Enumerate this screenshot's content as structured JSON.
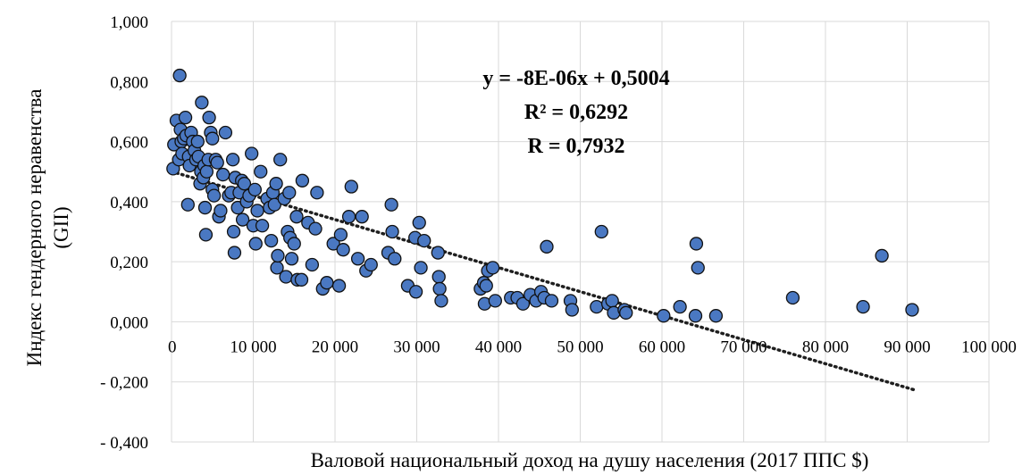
{
  "chart_data": {
    "type": "scatter",
    "title": "",
    "xlabel": "Валовой национальный доход  на душу населения (2017 ППС $)",
    "ylabel_line1": "Индекс гендерного неравенства",
    "ylabel_line2": "(GII)",
    "xlim": [
      0,
      100000
    ],
    "ylim": [
      -0.4,
      1.0
    ],
    "x_ticks": [
      {
        "value": 0,
        "label": "0"
      },
      {
        "value": 10000,
        "label": "10 000"
      },
      {
        "value": 20000,
        "label": "20 000"
      },
      {
        "value": 30000,
        "label": "30 000"
      },
      {
        "value": 40000,
        "label": "40 000"
      },
      {
        "value": 50000,
        "label": "50 000"
      },
      {
        "value": 60000,
        "label": "60 000"
      },
      {
        "value": 70000,
        "label": "70 000"
      },
      {
        "value": 80000,
        "label": "80 000"
      },
      {
        "value": 90000,
        "label": "90 000"
      },
      {
        "value": 100000,
        "label": "100 000"
      }
    ],
    "y_ticks": [
      {
        "value": 1.0,
        "label": "1,000"
      },
      {
        "value": 0.8,
        "label": "0,800"
      },
      {
        "value": 0.6,
        "label": "0,600"
      },
      {
        "value": 0.4,
        "label": "0,400"
      },
      {
        "value": 0.2,
        "label": "0,200"
      },
      {
        "value": 0.0,
        "label": "0,000"
      },
      {
        "value": -0.2,
        "label": "- 0,200"
      },
      {
        "value": -0.4,
        "label": "- 0,400"
      }
    ],
    "grid": {
      "horizontal": true,
      "vertical": true
    },
    "colors": {
      "marker_fill": "#4a78c2",
      "marker_stroke": "#111111",
      "trendline": "#1f1f1f",
      "grid": "#d9d9d9"
    },
    "trendline": {
      "type": "linear",
      "slope": -8e-06,
      "intercept": 0.5004,
      "x_range": [
        0,
        91000
      ]
    },
    "annotations": [
      "y = -8E-06x + 0,5004",
      "R² = 0,6292",
      "R = 0,7932"
    ],
    "points": [
      [
        200,
        0.51
      ],
      [
        300,
        0.59
      ],
      [
        600,
        0.67
      ],
      [
        900,
        0.54
      ],
      [
        1000,
        0.82
      ],
      [
        1100,
        0.64
      ],
      [
        1200,
        0.6
      ],
      [
        1300,
        0.56
      ],
      [
        1500,
        0.61
      ],
      [
        1700,
        0.68
      ],
      [
        1800,
        0.62
      ],
      [
        2000,
        0.39
      ],
      [
        2100,
        0.55
      ],
      [
        2200,
        0.52
      ],
      [
        2400,
        0.63
      ],
      [
        2600,
        0.6
      ],
      [
        2800,
        0.57
      ],
      [
        3000,
        0.54
      ],
      [
        3200,
        0.6
      ],
      [
        3300,
        0.55
      ],
      [
        3500,
        0.46
      ],
      [
        3600,
        0.5
      ],
      [
        3700,
        0.73
      ],
      [
        3900,
        0.48
      ],
      [
        4000,
        0.52
      ],
      [
        4100,
        0.38
      ],
      [
        4200,
        0.29
      ],
      [
        4300,
        0.5
      ],
      [
        4500,
        0.54
      ],
      [
        4600,
        0.68
      ],
      [
        4800,
        0.63
      ],
      [
        5000,
        0.61
      ],
      [
        5000,
        0.44
      ],
      [
        5200,
        0.42
      ],
      [
        5400,
        0.54
      ],
      [
        5600,
        0.53
      ],
      [
        5800,
        0.35
      ],
      [
        6000,
        0.37
      ],
      [
        6300,
        0.49
      ],
      [
        6600,
        0.63
      ],
      [
        7000,
        0.42
      ],
      [
        7300,
        0.43
      ],
      [
        7500,
        0.54
      ],
      [
        7600,
        0.3
      ],
      [
        7700,
        0.23
      ],
      [
        7800,
        0.48
      ],
      [
        8100,
        0.38
      ],
      [
        8300,
        0.43
      ],
      [
        8600,
        0.47
      ],
      [
        8700,
        0.34
      ],
      [
        8900,
        0.46
      ],
      [
        9200,
        0.4
      ],
      [
        9500,
        0.42
      ],
      [
        9800,
        0.56
      ],
      [
        10000,
        0.32
      ],
      [
        10200,
        0.44
      ],
      [
        10300,
        0.26
      ],
      [
        10500,
        0.37
      ],
      [
        10900,
        0.5
      ],
      [
        11100,
        0.32
      ],
      [
        11700,
        0.41
      ],
      [
        12000,
        0.38
      ],
      [
        12200,
        0.27
      ],
      [
        12400,
        0.43
      ],
      [
        12600,
        0.39
      ],
      [
        12800,
        0.46
      ],
      [
        12900,
        0.18
      ],
      [
        13000,
        0.22
      ],
      [
        13300,
        0.54
      ],
      [
        13800,
        0.41
      ],
      [
        14000,
        0.15
      ],
      [
        14200,
        0.3
      ],
      [
        14400,
        0.43
      ],
      [
        14500,
        0.28
      ],
      [
        14700,
        0.21
      ],
      [
        15000,
        0.26
      ],
      [
        15300,
        0.35
      ],
      [
        15400,
        0.14
      ],
      [
        15900,
        0.14
      ],
      [
        16000,
        0.47
      ],
      [
        16700,
        0.33
      ],
      [
        17200,
        0.19
      ],
      [
        17600,
        0.31
      ],
      [
        17800,
        0.43
      ],
      [
        18500,
        0.11
      ],
      [
        19000,
        0.13
      ],
      [
        19800,
        0.26
      ],
      [
        20500,
        0.12
      ],
      [
        20700,
        0.29
      ],
      [
        21000,
        0.24
      ],
      [
        21700,
        0.35
      ],
      [
        22000,
        0.45
      ],
      [
        22800,
        0.21
      ],
      [
        23300,
        0.35
      ],
      [
        23800,
        0.17
      ],
      [
        24400,
        0.19
      ],
      [
        26500,
        0.23
      ],
      [
        26900,
        0.39
      ],
      [
        27000,
        0.3
      ],
      [
        27300,
        0.21
      ],
      [
        28900,
        0.12
      ],
      [
        29800,
        0.28
      ],
      [
        29900,
        0.1
      ],
      [
        30300,
        0.33
      ],
      [
        30500,
        0.18
      ],
      [
        30900,
        0.27
      ],
      [
        32600,
        0.23
      ],
      [
        32700,
        0.15
      ],
      [
        32800,
        0.11
      ],
      [
        33000,
        0.07
      ],
      [
        37800,
        0.11
      ],
      [
        38200,
        0.13
      ],
      [
        38300,
        0.06
      ],
      [
        38500,
        0.12
      ],
      [
        38700,
        0.17
      ],
      [
        39300,
        0.18
      ],
      [
        39600,
        0.07
      ],
      [
        41500,
        0.08
      ],
      [
        42300,
        0.08
      ],
      [
        43000,
        0.06
      ],
      [
        43900,
        0.09
      ],
      [
        44600,
        0.07
      ],
      [
        45200,
        0.1
      ],
      [
        45600,
        0.08
      ],
      [
        45900,
        0.25
      ],
      [
        46500,
        0.07
      ],
      [
        48800,
        0.07
      ],
      [
        49000,
        0.04
      ],
      [
        52000,
        0.05
      ],
      [
        52600,
        0.3
      ],
      [
        53400,
        0.06
      ],
      [
        53900,
        0.07
      ],
      [
        54100,
        0.03
      ],
      [
        55400,
        0.04
      ],
      [
        55600,
        0.03
      ],
      [
        60200,
        0.02
      ],
      [
        62200,
        0.05
      ],
      [
        64100,
        0.02
      ],
      [
        64200,
        0.26
      ],
      [
        64400,
        0.18
      ],
      [
        66600,
        0.02
      ],
      [
        76000,
        0.08
      ],
      [
        84600,
        0.05
      ],
      [
        86900,
        0.22
      ],
      [
        90600,
        0.04
      ]
    ]
  }
}
